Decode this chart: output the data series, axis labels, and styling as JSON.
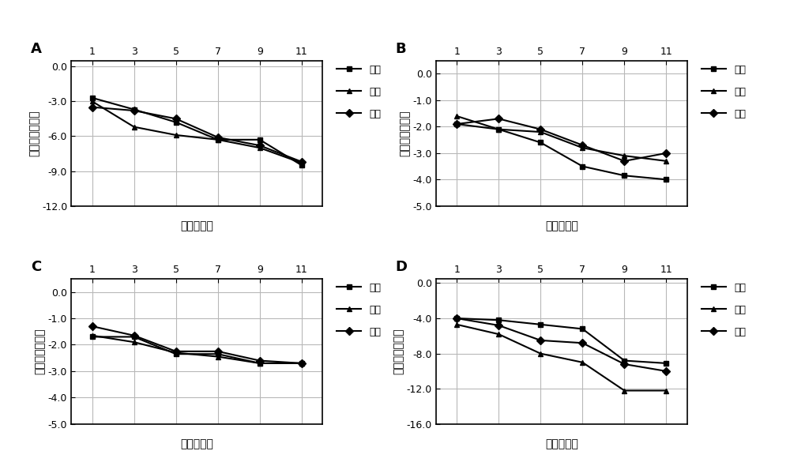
{
  "x": [
    1,
    3,
    5,
    7,
    9,
    11
  ],
  "panels": {
    "A": {
      "label": "A",
      "low": [
        -2.7,
        -3.7,
        -4.8,
        -6.3,
        -6.3,
        -8.5
      ],
      "mid": [
        -3.0,
        -5.2,
        -5.9,
        -6.3,
        -7.0,
        -8.3
      ],
      "high": [
        -3.5,
        -3.8,
        -4.5,
        -6.1,
        -6.8,
        -8.2
      ],
      "ylim": [
        -12.0,
        0.5
      ],
      "yticks": [
        0.0,
        -3.0,
        -6.0,
        -9.0,
        -12.0
      ],
      "ytick_labels": [
        "0.0",
        "-3.0",
        "-6.0",
        "-9.0",
        "-12.0"
      ]
    },
    "B": {
      "label": "B",
      "low": [
        -1.9,
        -2.1,
        -2.6,
        -3.5,
        -3.85,
        -4.0
      ],
      "mid": [
        -1.6,
        -2.1,
        -2.2,
        -2.8,
        -3.1,
        -3.3
      ],
      "high": [
        -1.9,
        -1.7,
        -2.1,
        -2.7,
        -3.3,
        -3.0
      ],
      "ylim": [
        -5.0,
        0.5
      ],
      "yticks": [
        0.0,
        -1.0,
        -2.0,
        -3.0,
        -4.0,
        -5.0
      ],
      "ytick_labels": [
        "0.0",
        "-1.0",
        "-2.0",
        "-3.0",
        "-4.0",
        "-5.0"
      ]
    },
    "C": {
      "label": "C",
      "low": [
        -1.7,
        -1.7,
        -2.35,
        -2.35,
        -2.7,
        -2.7
      ],
      "mid": [
        -1.65,
        -1.9,
        -2.3,
        -2.45,
        -2.7,
        -2.7
      ],
      "high": [
        -1.3,
        -1.65,
        -2.25,
        -2.25,
        -2.6,
        -2.7
      ],
      "ylim": [
        -5.0,
        0.5
      ],
      "yticks": [
        0.0,
        -1.0,
        -2.0,
        -3.0,
        -4.0,
        -5.0
      ],
      "ytick_labels": [
        "0.0",
        "-1.0",
        "-2.0",
        "-3.0",
        "-4.0",
        "-5.0"
      ]
    },
    "D": {
      "label": "D",
      "low": [
        -4.0,
        -4.2,
        -4.7,
        -5.2,
        -8.8,
        -9.1
      ],
      "mid": [
        -4.7,
        -5.8,
        -8.0,
        -9.0,
        -12.2,
        -12.2
      ],
      "high": [
        -4.0,
        -4.8,
        -6.5,
        -6.8,
        -9.2,
        -10.0
      ],
      "ylim": [
        -16.0,
        0.5
      ],
      "yticks": [
        0.0,
        -4.0,
        -8.0,
        -12.0,
        -16.0
      ],
      "ytick_labels": [
        "0.0",
        "-4.0",
        "-8.0",
        "-12.0",
        "-16.0"
      ]
    }
  },
  "legend_labels": [
    "低值",
    "中值",
    "高值"
  ],
  "xlabel": "时间（天）",
  "ylabel": "相对偏差（％）",
  "line_color": "#000000",
  "xticks": [
    1,
    3,
    5,
    7,
    9,
    11
  ]
}
